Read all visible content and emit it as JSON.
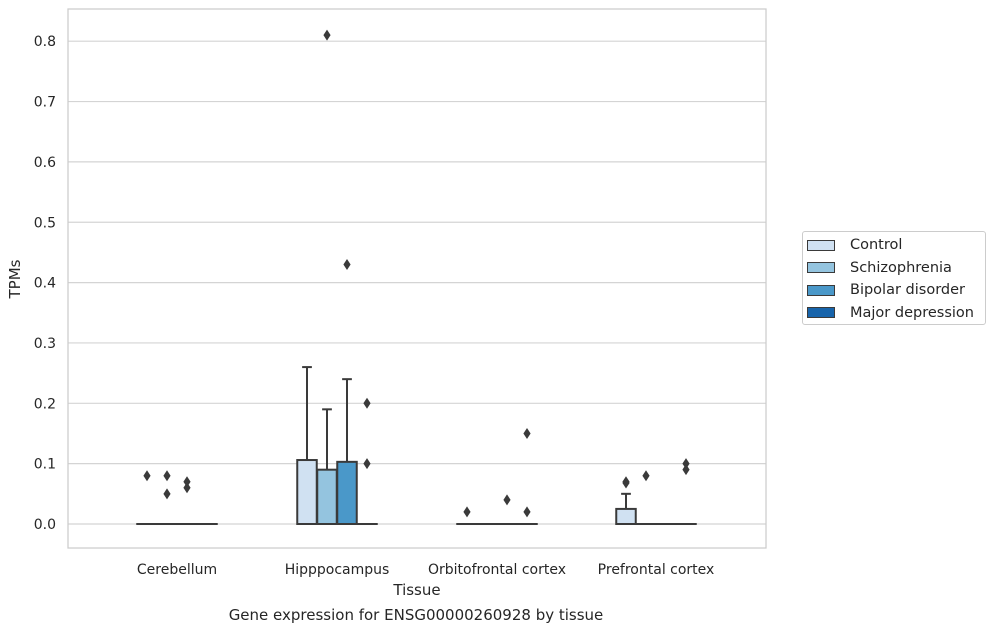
{
  "chart_data": {
    "type": "box",
    "title": "",
    "caption": "Gene expression for ENSG00000260928 by tissue",
    "xlabel": "Tissue",
    "ylabel": "TPMs",
    "ylim": [
      -0.04,
      0.85
    ],
    "yticks": [
      0.0,
      0.1,
      0.2,
      0.3,
      0.4,
      0.5,
      0.6,
      0.7,
      0.8
    ],
    "ytick_labels": [
      "0.0",
      "0.1",
      "0.2",
      "0.3",
      "0.4",
      "0.5",
      "0.6",
      "0.7",
      "0.8"
    ],
    "grid": "horizontal",
    "legend_position": "right",
    "categories": [
      "Cerebellum",
      "Hipppocampus",
      "Orbitofrontal cortex",
      "Prefrontal cortex"
    ],
    "series": [
      {
        "name": "Control",
        "color": "#d0e1f2",
        "boxes": [
          {
            "q1": 0,
            "median": 0,
            "q3": 0,
            "whisker_low": 0,
            "whisker_high": 0,
            "outliers": [
              0.08
            ]
          },
          {
            "q1": 0,
            "median": 0,
            "q3": 0.106,
            "whisker_low": 0,
            "whisker_high": 0.26,
            "outliers": []
          },
          {
            "q1": 0,
            "median": 0,
            "q3": 0,
            "whisker_low": 0,
            "whisker_high": 0,
            "outliers": [
              0.02
            ]
          },
          {
            "q1": 0,
            "median": 0,
            "q3": 0.025,
            "whisker_low": 0,
            "whisker_high": 0.05,
            "outliers": [
              0.07,
              0.068
            ]
          }
        ]
      },
      {
        "name": "Schizophrenia",
        "color": "#94c4df",
        "boxes": [
          {
            "q1": 0,
            "median": 0,
            "q3": 0,
            "whisker_low": 0,
            "whisker_high": 0,
            "outliers": [
              0.08,
              0.05
            ]
          },
          {
            "q1": 0,
            "median": 0,
            "q3": 0.09,
            "whisker_low": 0,
            "whisker_high": 0.19,
            "outliers": [
              0.81
            ]
          },
          {
            "q1": 0,
            "median": 0,
            "q3": 0,
            "whisker_low": 0,
            "whisker_high": 0,
            "outliers": []
          },
          {
            "q1": 0,
            "median": 0,
            "q3": 0,
            "whisker_low": 0,
            "whisker_high": 0,
            "outliers": [
              0.08
            ]
          }
        ]
      },
      {
        "name": "Bipolar disorder",
        "color": "#4a98c9",
        "boxes": [
          {
            "q1": 0,
            "median": 0,
            "q3": 0,
            "whisker_low": 0,
            "whisker_high": 0,
            "outliers": [
              0.07,
              0.06
            ]
          },
          {
            "q1": 0,
            "median": 0,
            "q3": 0.103,
            "whisker_low": 0,
            "whisker_high": 0.24,
            "outliers": [
              0.43
            ]
          },
          {
            "q1": 0,
            "median": 0,
            "q3": 0,
            "whisker_low": 0,
            "whisker_high": 0,
            "outliers": [
              0.04
            ]
          },
          {
            "q1": 0,
            "median": 0,
            "q3": 0,
            "whisker_low": 0,
            "whisker_high": 0,
            "outliers": []
          }
        ]
      },
      {
        "name": "Major depression",
        "color": "#1764ab",
        "boxes": [
          {
            "q1": 0,
            "median": 0,
            "q3": 0,
            "whisker_low": 0,
            "whisker_high": 0,
            "outliers": []
          },
          {
            "q1": 0,
            "median": 0,
            "q3": 0,
            "whisker_low": 0,
            "whisker_high": 0,
            "outliers": [
              0.2,
              0.1
            ]
          },
          {
            "q1": 0,
            "median": 0,
            "q3": 0,
            "whisker_low": 0,
            "whisker_high": 0,
            "outliers": [
              0.15,
              0.02
            ]
          },
          {
            "q1": 0,
            "median": 0,
            "q3": 0,
            "whisker_low": 0,
            "whisker_high": 0,
            "outliers": [
              0.1,
              0.09
            ]
          }
        ]
      }
    ]
  }
}
